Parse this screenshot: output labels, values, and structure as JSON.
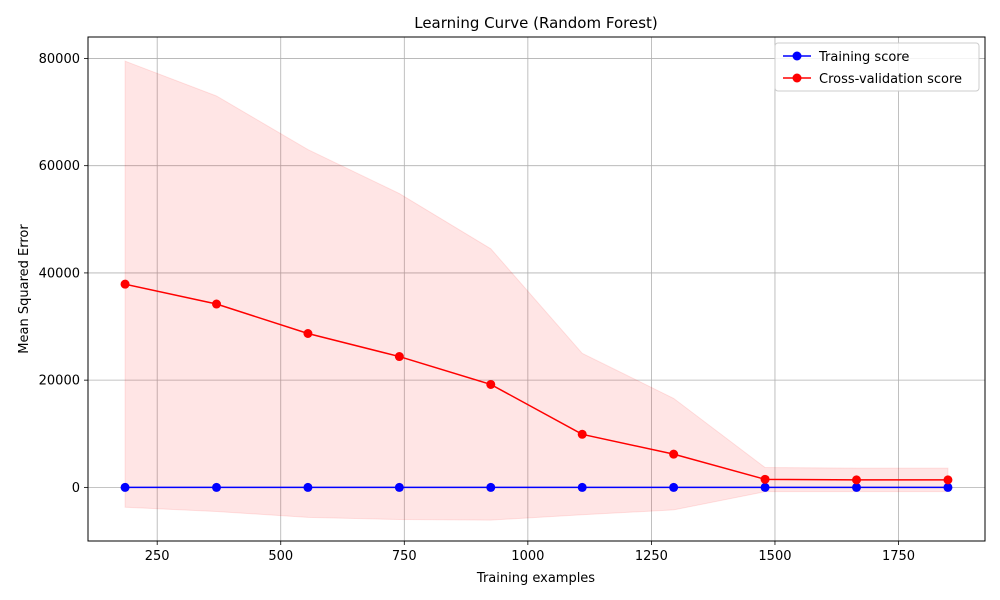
{
  "chart_data": {
    "type": "line",
    "title": "Learning Curve (Random Forest)",
    "xlabel": "Training examples",
    "ylabel": "Mean Squared Error",
    "xlim": [
      110,
      1925
    ],
    "ylim": [
      -10000,
      84000
    ],
    "xticks": [
      250,
      500,
      750,
      1000,
      1250,
      1500,
      1750
    ],
    "yticks": [
      0,
      20000,
      40000,
      60000,
      80000
    ],
    "grid": true,
    "legend_position": "top-right",
    "x": [
      185,
      370,
      555,
      740,
      925,
      1110,
      1295,
      1480,
      1665,
      1850
    ],
    "series": [
      {
        "name": "Training score",
        "color": "#0000ff",
        "values": [
          0,
          0,
          0,
          0,
          0,
          0,
          0,
          0,
          0,
          0
        ],
        "band_lower": [
          0,
          0,
          0,
          0,
          0,
          0,
          0,
          0,
          0,
          0
        ],
        "band_upper": [
          0,
          0,
          0,
          0,
          0,
          0,
          0,
          0,
          0,
          0
        ]
      },
      {
        "name": "Cross-validation score",
        "color": "#ff0000",
        "values": [
          37900,
          34200,
          28700,
          24400,
          19200,
          9900,
          6200,
          1500,
          1400,
          1400
        ],
        "band_lower": [
          -3700,
          -4500,
          -5600,
          -6000,
          -6100,
          -5100,
          -4200,
          -800,
          -800,
          -800
        ],
        "band_upper": [
          79500,
          73000,
          63000,
          54800,
          44500,
          25000,
          16600,
          3700,
          3600,
          3600
        ]
      }
    ]
  }
}
